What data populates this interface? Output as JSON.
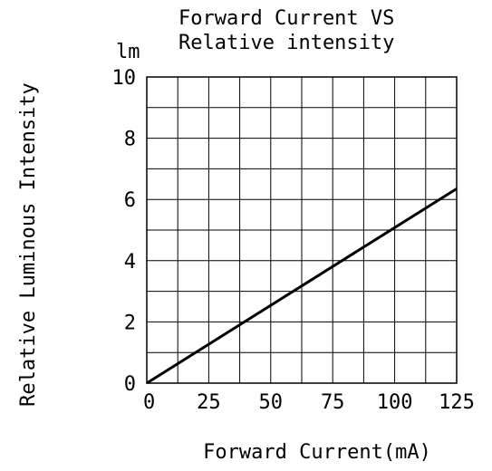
{
  "chart_data": {
    "type": "line",
    "title_lines": [
      "Forward Current VS",
      "Relative intensity"
    ],
    "xlabel": "Forward Current(mA)",
    "ylabel": "Relative Luminous Intensity",
    "y_unit": "lm",
    "xlim": [
      0,
      125
    ],
    "ylim": [
      0,
      10
    ],
    "x_ticks": [
      "0",
      "25",
      "50",
      "75",
      "100",
      "125"
    ],
    "y_ticks": [
      "0",
      "2",
      "4",
      "6",
      "8",
      "10"
    ],
    "grid": true,
    "grid_x_step": 12.5,
    "grid_y_step": 1,
    "series": [
      {
        "x": [
          0,
          125
        ],
        "y": [
          0,
          6.35
        ]
      }
    ]
  }
}
